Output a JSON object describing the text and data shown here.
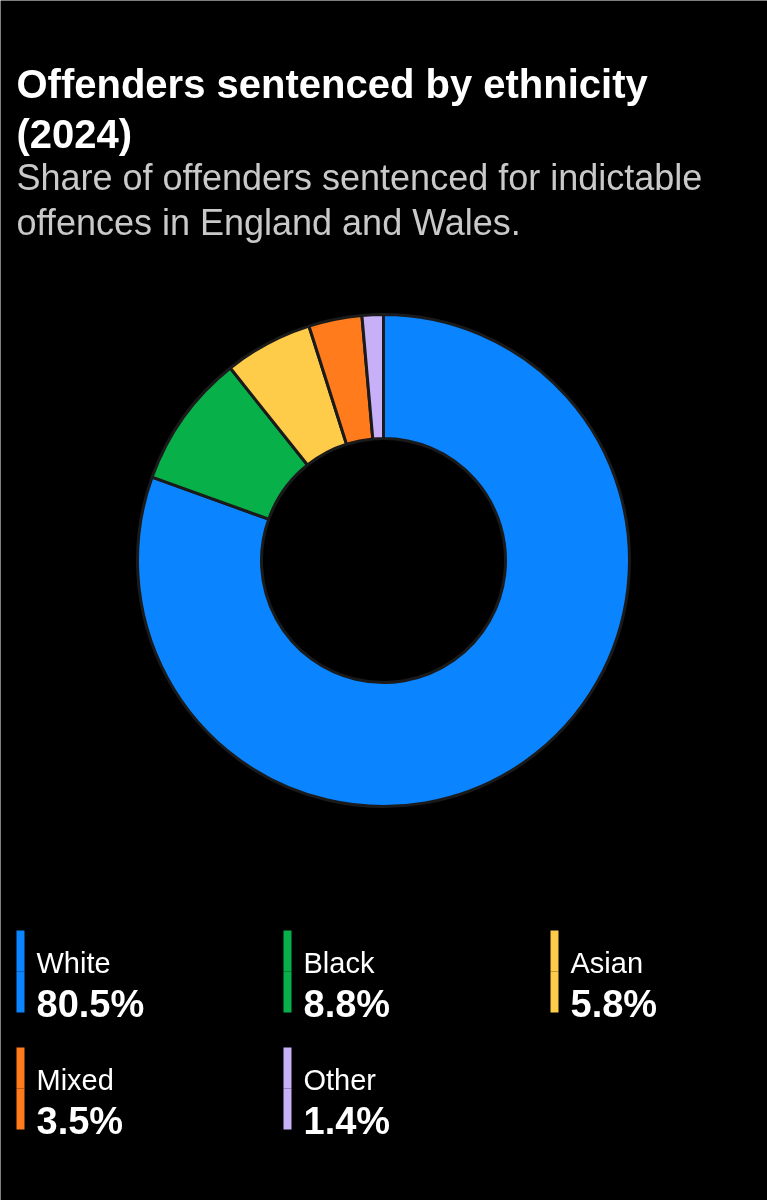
{
  "chart_data": {
    "type": "donut",
    "title": "Offenders sentenced by ethnicity (2024)",
    "subtitle": "Share of offenders sentenced for indictable offences in England and Wales.",
    "categories": [
      "White",
      "Black",
      "Asian",
      "Mixed",
      "Other"
    ],
    "values": [
      80.5,
      8.8,
      5.8,
      3.5,
      1.4
    ],
    "value_labels": [
      "80.5%",
      "8.8%",
      "5.8%",
      "3.5%",
      "1.4%"
    ],
    "colors": [
      "#0a84ff",
      "#08b04a",
      "#ffcc4a",
      "#ff7b1c",
      "#c8b0f8"
    ],
    "legend": "bottom"
  }
}
